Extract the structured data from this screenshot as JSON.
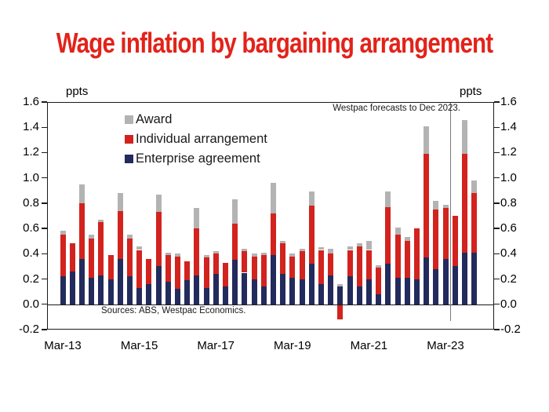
{
  "title": "Wage inflation by bargaining arrangement",
  "title_color": "#e2231a",
  "y_axis_unit_left": "ppts",
  "y_axis_unit_right": "ppts",
  "annotation": "Westpac forecasts to Dec 2023.",
  "source_note": "Sources: ABS, Westpac Economics.",
  "chart_data": {
    "type": "bar",
    "stacked": true,
    "title": "Wage inflation by bargaining arrangement",
    "ylabel": "ppts",
    "ylim": [
      -0.2,
      1.6
    ],
    "y_tick_step": 0.2,
    "y_tick_labels": [
      "1.6",
      "1.4",
      "1.2",
      "1.0",
      "0.8",
      "0.6",
      "0.4",
      "0.2",
      "0.0",
      "-0.2"
    ],
    "grid": false,
    "legend_position": "top-left-inside",
    "categories": [
      "Mar-13",
      "Jun-13",
      "Sep-13",
      "Dec-13",
      "Mar-14",
      "Jun-14",
      "Sep-14",
      "Dec-14",
      "Mar-15",
      "Jun-15",
      "Sep-15",
      "Dec-15",
      "Mar-16",
      "Jun-16",
      "Sep-16",
      "Dec-16",
      "Mar-17",
      "Jun-17",
      "Sep-17",
      "Dec-17",
      "Mar-18",
      "Jun-18",
      "Sep-18",
      "Dec-18",
      "Mar-19",
      "Jun-19",
      "Sep-19",
      "Dec-19",
      "Mar-20",
      "Jun-20",
      "Sep-20",
      "Dec-20",
      "Mar-21",
      "Jun-21",
      "Sep-21",
      "Dec-21",
      "Mar-22",
      "Jun-22",
      "Sep-22",
      "Dec-22",
      "Mar-23",
      "Jun-23",
      "Sep-23",
      "Dec-23"
    ],
    "x_ticks": [
      {
        "label": "Mar-13",
        "bar_index": 0
      },
      {
        "label": "Mar-15",
        "bar_index": 8
      },
      {
        "label": "Mar-17",
        "bar_index": 16
      },
      {
        "label": "Mar-19",
        "bar_index": 24
      },
      {
        "label": "Mar-21",
        "bar_index": 32
      },
      {
        "label": "Mar-23",
        "bar_index": 40
      }
    ],
    "forecast_line_after_index": 40,
    "series": [
      {
        "name": "Enterprise agreement",
        "color": "#232a5c",
        "values": [
          0.22,
          0.26,
          0.36,
          0.21,
          0.23,
          0.2,
          0.36,
          0.22,
          0.13,
          0.16,
          0.3,
          0.18,
          0.12,
          0.19,
          0.23,
          0.13,
          0.24,
          0.14,
          0.35,
          0.25,
          0.2,
          0.14,
          0.39,
          0.24,
          0.21,
          0.2,
          0.32,
          0.16,
          0.23,
          0.14,
          0.22,
          0.14,
          0.2,
          0.08,
          0.32,
          0.21,
          0.21,
          0.2,
          0.37,
          0.28,
          0.36,
          0.3,
          0.41,
          0.41
        ]
      },
      {
        "name": "Individual arrangement",
        "color": "#d2231e",
        "values": [
          0.33,
          0.22,
          0.44,
          0.31,
          0.42,
          0.19,
          0.38,
          0.3,
          0.3,
          0.2,
          0.43,
          0.21,
          0.26,
          0.15,
          0.37,
          0.24,
          0.16,
          0.19,
          0.29,
          0.17,
          0.18,
          0.25,
          0.33,
          0.24,
          0.17,
          0.22,
          0.46,
          0.27,
          0.17,
          -0.12,
          0.21,
          0.32,
          0.23,
          0.21,
          0.45,
          0.34,
          0.29,
          0.4,
          0.82,
          0.47,
          0.4,
          0.4,
          0.78,
          0.47
        ]
      },
      {
        "name": "Award",
        "color": "#b3b3b3",
        "values": [
          0.03,
          0.0,
          0.15,
          0.03,
          0.02,
          0.0,
          0.14,
          0.03,
          0.03,
          0.0,
          0.14,
          0.02,
          0.02,
          0.0,
          0.16,
          0.02,
          0.02,
          0.0,
          0.19,
          0.02,
          0.02,
          0.02,
          0.24,
          0.02,
          0.02,
          0.02,
          0.11,
          0.02,
          0.04,
          0.02,
          0.03,
          0.02,
          0.07,
          0.02,
          0.12,
          0.06,
          0.03,
          0.0,
          0.22,
          0.07,
          0.03,
          0.0,
          0.27,
          0.1
        ]
      }
    ]
  },
  "legend": [
    {
      "label": "Award",
      "color": "#b3b3b3"
    },
    {
      "label": "Individual arrangement",
      "color": "#d2231e"
    },
    {
      "label": "Enterprise agreement",
      "color": "#232a5c"
    }
  ]
}
